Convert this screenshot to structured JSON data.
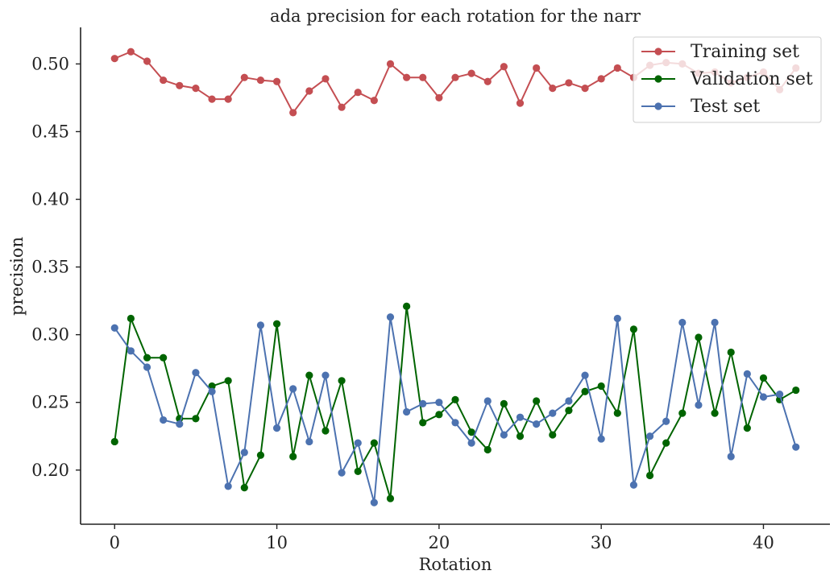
{
  "chart_data": {
    "type": "line",
    "title": "ada precision for each rotation for the narr",
    "xlabel": "Rotation",
    "ylabel": "precision",
    "xlim": [
      -2.1,
      44.1
    ],
    "ylim": [
      0.16,
      0.527
    ],
    "xticks": [
      0,
      10,
      20,
      30,
      40
    ],
    "xtick_labels": [
      "0",
      "10",
      "20",
      "30",
      "40"
    ],
    "yticks": [
      0.2,
      0.25,
      0.3,
      0.35,
      0.4,
      0.45,
      0.5
    ],
    "ytick_labels": [
      "0.20",
      "0.25",
      "0.30",
      "0.35",
      "0.40",
      "0.45",
      "0.50"
    ],
    "grid": false,
    "legend_position": "top-right",
    "x": [
      0,
      1,
      2,
      3,
      4,
      5,
      6,
      7,
      8,
      9,
      10,
      11,
      12,
      13,
      14,
      15,
      16,
      17,
      18,
      19,
      20,
      21,
      22,
      23,
      24,
      25,
      26,
      27,
      28,
      29,
      30,
      31,
      32,
      33,
      34,
      35,
      36,
      37,
      38,
      39,
      40,
      41,
      42
    ],
    "series": [
      {
        "name": "Training set",
        "color": "#c44e52",
        "values": [
          0.504,
          0.509,
          0.502,
          0.488,
          0.484,
          0.482,
          0.474,
          0.474,
          0.49,
          0.488,
          0.487,
          0.464,
          0.48,
          0.489,
          0.468,
          0.479,
          0.473,
          0.5,
          0.49,
          0.49,
          0.475,
          0.49,
          0.493,
          0.487,
          0.498,
          0.471,
          0.497,
          0.482,
          0.486,
          0.482,
          0.489,
          0.497,
          0.49,
          0.499,
          0.501,
          0.5,
          0.493,
          0.494,
          0.486,
          0.49,
          0.494,
          0.481,
          0.497
        ]
      },
      {
        "name": "Validation set",
        "color": "#006400",
        "values": [
          0.221,
          0.312,
          0.283,
          0.283,
          0.238,
          0.238,
          0.262,
          0.266,
          0.187,
          0.211,
          0.308,
          0.21,
          0.27,
          0.229,
          0.266,
          0.199,
          0.22,
          0.179,
          0.321,
          0.235,
          0.241,
          0.252,
          0.228,
          0.215,
          0.249,
          0.225,
          0.251,
          0.226,
          0.244,
          0.258,
          0.262,
          0.242,
          0.304,
          0.196,
          0.22,
          0.242,
          0.298,
          0.242,
          0.287,
          0.231,
          0.268,
          0.252,
          0.259
        ]
      },
      {
        "name": "Test set",
        "color": "#4c72b0",
        "values": [
          0.305,
          0.288,
          0.276,
          0.237,
          0.234,
          0.272,
          0.258,
          0.188,
          0.213,
          0.307,
          0.231,
          0.26,
          0.221,
          0.27,
          0.198,
          0.22,
          0.176,
          0.313,
          0.243,
          0.249,
          0.25,
          0.235,
          0.22,
          0.251,
          0.226,
          0.239,
          0.234,
          0.242,
          0.251,
          0.27,
          0.223,
          0.312,
          0.189,
          0.225,
          0.236,
          0.309,
          0.248,
          0.309,
          0.21,
          0.271,
          0.254,
          0.256,
          0.217
        ]
      }
    ]
  }
}
